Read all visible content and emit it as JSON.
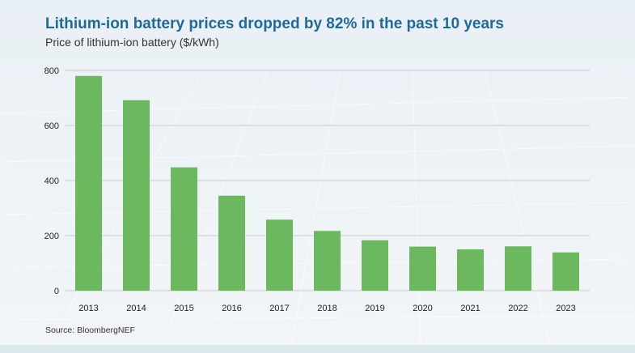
{
  "title": "Lithium-ion battery prices dropped by 82% in the past 10 years",
  "subtitle": "Price of lithium-ion battery ($/kWh)",
  "source": "Source: BloombergNEF",
  "colors": {
    "bar": "#6cb85f",
    "title": "#1e6a9a",
    "grid": "#c4cdd2",
    "text": "#222222"
  },
  "chart_data": {
    "type": "bar",
    "title": "Lithium-ion battery prices dropped by 82% in the past 10 years",
    "subtitle": "Price of lithium-ion battery ($/kWh)",
    "xlabel": "",
    "ylabel": "",
    "categories": [
      "2013",
      "2014",
      "2015",
      "2016",
      "2017",
      "2018",
      "2019",
      "2020",
      "2021",
      "2022",
      "2023"
    ],
    "values": [
      780,
      692,
      448,
      345,
      258,
      217,
      183,
      160,
      150,
      161,
      139
    ],
    "ylim": [
      0,
      800
    ],
    "yticks": [
      0,
      200,
      400,
      600,
      800
    ],
    "grid": true,
    "legend": "none"
  }
}
